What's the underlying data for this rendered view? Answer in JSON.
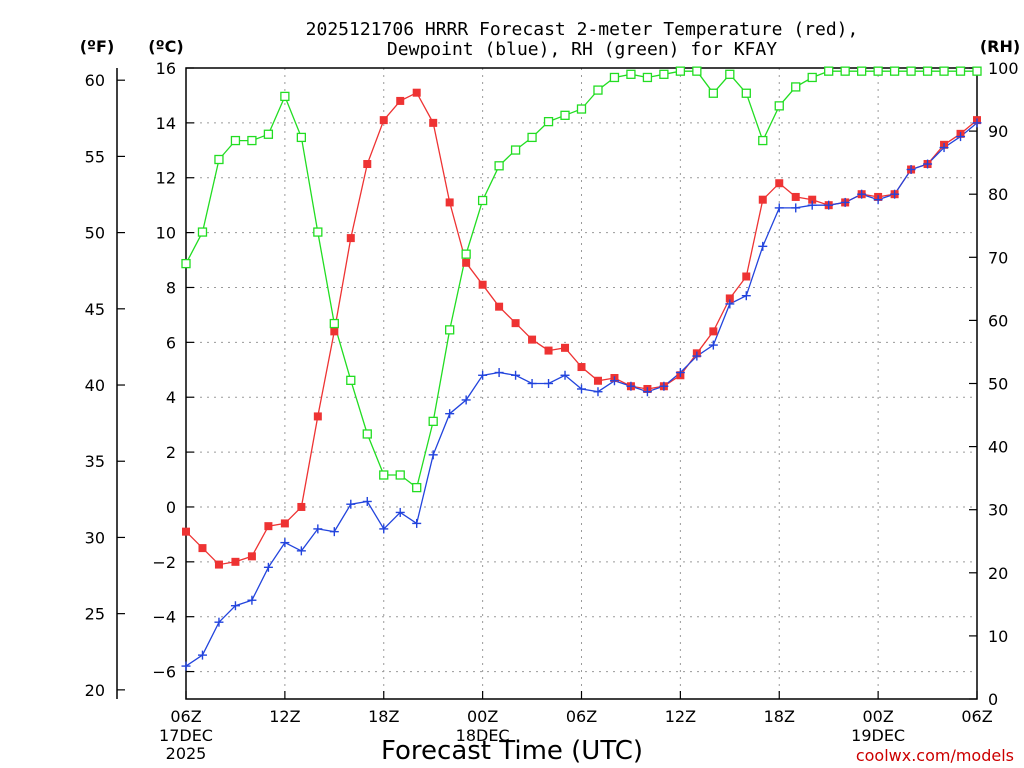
{
  "chart_data": {
    "type": "line",
    "title": [
      "2025121706 HRRR Forecast 2-meter Temperature (red),",
      "Dewpoint (blue), RH (green) for KFAY"
    ],
    "xlabel": "Forecast Time (UTC)",
    "credit": "coolwx.com/models",
    "x_axis": {
      "range_hours": [
        0,
        48
      ],
      "ticks": [
        {
          "hour": 0,
          "label": "06Z",
          "sub": [
            "17DEC",
            "2025"
          ]
        },
        {
          "hour": 6,
          "label": "12Z",
          "sub": []
        },
        {
          "hour": 12,
          "label": "18Z",
          "sub": []
        },
        {
          "hour": 18,
          "label": "00Z",
          "sub": [
            "18DEC"
          ]
        },
        {
          "hour": 24,
          "label": "06Z",
          "sub": []
        },
        {
          "hour": 30,
          "label": "12Z",
          "sub": []
        },
        {
          "hour": 36,
          "label": "18Z",
          "sub": []
        },
        {
          "hour": 42,
          "label": "00Z",
          "sub": [
            "19DEC"
          ]
        },
        {
          "hour": 48,
          "label": "06Z",
          "sub": []
        }
      ]
    },
    "y_axes": {
      "celsius": {
        "label": "(ºC)",
        "range": [
          -7,
          16
        ],
        "ticks": [
          "-6",
          "-4",
          "-2",
          "0",
          "2",
          "4",
          "6",
          "8",
          "10",
          "12",
          "14",
          "16"
        ]
      },
      "fahrenheit": {
        "label": "(ºF)",
        "ticks": [
          "20",
          "25",
          "30",
          "35",
          "40",
          "45",
          "50",
          "55",
          "60"
        ]
      },
      "rh": {
        "label": "(RH)",
        "range": [
          0,
          100
        ],
        "ticks": [
          "0",
          "10",
          "20",
          "30",
          "40",
          "50",
          "60",
          "70",
          "80",
          "90",
          "100"
        ]
      }
    },
    "grid": true,
    "series": [
      {
        "key": "temp",
        "axis": "celsius",
        "color": "#ee3333",
        "marker": "filled-square",
        "hours": [
          0,
          1,
          2,
          3,
          4,
          5,
          6,
          7,
          8,
          9,
          10,
          11,
          12,
          13,
          14,
          15,
          16,
          17,
          18,
          19,
          20,
          21,
          22,
          23,
          24,
          25,
          26,
          27,
          28,
          29,
          30,
          31,
          32,
          33,
          34,
          35,
          36,
          37,
          38,
          39,
          40,
          41,
          42,
          43,
          44,
          45,
          46,
          47,
          48
        ],
        "values": [
          -0.9,
          -1.5,
          -2.1,
          -2.0,
          -1.8,
          -0.7,
          -0.6,
          0.0,
          3.3,
          6.4,
          9.8,
          12.5,
          14.1,
          14.8,
          15.1,
          14.0,
          11.1,
          8.9,
          8.1,
          7.3,
          6.7,
          6.1,
          5.7,
          5.8,
          5.1,
          4.6,
          4.7,
          4.4,
          4.3,
          4.4,
          4.8,
          5.6,
          6.4,
          7.6,
          8.4,
          11.2,
          11.8,
          11.3,
          11.2,
          11.0,
          11.1,
          11.4,
          11.3,
          11.4,
          12.3,
          12.5,
          13.2,
          13.6,
          14.1
        ]
      },
      {
        "key": "dewpoint",
        "axis": "celsius",
        "color": "#2244dd",
        "marker": "plus",
        "hours": [
          0,
          1,
          2,
          3,
          4,
          5,
          6,
          7,
          8,
          9,
          10,
          11,
          12,
          13,
          14,
          15,
          16,
          17,
          18,
          19,
          20,
          21,
          22,
          23,
          24,
          25,
          26,
          27,
          28,
          29,
          30,
          31,
          32,
          33,
          34,
          35,
          36,
          37,
          38,
          39,
          40,
          41,
          42,
          43,
          44,
          45,
          46,
          47,
          48
        ],
        "values": [
          -5.8,
          -5.4,
          -4.2,
          -3.6,
          -3.4,
          -2.2,
          -1.3,
          -1.6,
          -0.8,
          -0.9,
          0.1,
          0.2,
          -0.8,
          -0.2,
          -0.6,
          1.9,
          3.4,
          3.9,
          4.8,
          4.9,
          4.8,
          4.5,
          4.5,
          4.8,
          4.3,
          4.2,
          4.6,
          4.4,
          4.2,
          4.4,
          4.9,
          5.5,
          5.9,
          7.4,
          7.7,
          9.5,
          10.9,
          10.9,
          11.0,
          11.0,
          11.1,
          11.4,
          11.2,
          11.4,
          12.3,
          12.5,
          13.1,
          13.5,
          14.0
        ]
      },
      {
        "key": "rh",
        "axis": "rh",
        "color": "#22dd22",
        "marker": "open-square",
        "hours": [
          0,
          1,
          2,
          3,
          4,
          5,
          6,
          7,
          8,
          9,
          10,
          11,
          12,
          13,
          14,
          15,
          16,
          17,
          18,
          19,
          20,
          21,
          22,
          23,
          24,
          25,
          26,
          27,
          28,
          29,
          30,
          31,
          32,
          33,
          34,
          35,
          36,
          37,
          38,
          39,
          40,
          41,
          42,
          43,
          44,
          45,
          46,
          47,
          48
        ],
        "values": [
          69,
          74,
          85.5,
          88.5,
          88.5,
          89.5,
          95.5,
          89,
          74,
          59.5,
          50.5,
          42,
          35.5,
          35.5,
          33.5,
          44,
          58.5,
          70.5,
          79,
          84.5,
          87,
          89,
          91.5,
          92.5,
          93.5,
          96.5,
          98.5,
          99,
          98.5,
          99,
          99.5,
          99.5,
          96,
          99,
          96,
          88.5,
          94,
          97,
          98.5,
          99.5,
          99.5,
          99.5,
          99.5,
          99.5,
          99.5,
          99.5,
          99.5,
          99.5,
          99.5
        ]
      }
    ]
  }
}
